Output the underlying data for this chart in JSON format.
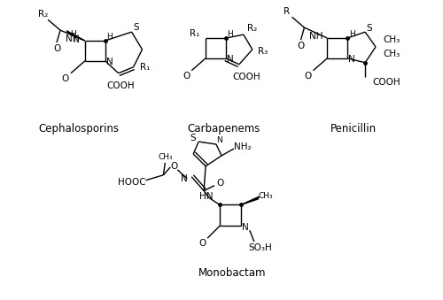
{
  "background_color": "#ffffff",
  "label_cephalosporins": "Cephalosporins",
  "label_carbapenems": "Carbapenems",
  "label_penicillin": "Penicillin",
  "label_monobactam": "Monobactam",
  "figsize": [
    5.0,
    3.39
  ],
  "dpi": 100
}
